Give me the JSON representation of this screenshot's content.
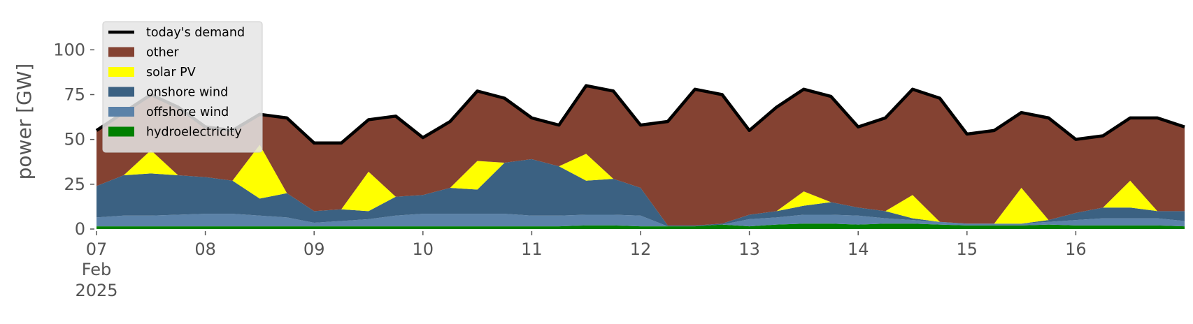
{
  "chart_data": {
    "type": "stacked-area",
    "ylabel": "power [GW]",
    "x": [
      7,
      7.25,
      7.5,
      7.75,
      8,
      8.25,
      8.5,
      8.75,
      9,
      9.25,
      9.5,
      9.75,
      10,
      10.25,
      10.5,
      10.75,
      11,
      11.25,
      11.5,
      11.75,
      12,
      12.25,
      12.5,
      12.75,
      13,
      13.25,
      13.5,
      13.75,
      14,
      14.25,
      14.5,
      14.75,
      15,
      15.25,
      15.5,
      15.75,
      16,
      16.25,
      16.5,
      16.75,
      17
    ],
    "xlim": [
      7,
      17
    ],
    "xticks": [
      {
        "value": 7,
        "label": "07"
      },
      {
        "value": 8,
        "label": "08"
      },
      {
        "value": 9,
        "label": "09"
      },
      10,
      11,
      12,
      13,
      14,
      15,
      16
    ],
    "x_month": "Feb",
    "x_year": "2025",
    "ylim": [
      0,
      120
    ],
    "yticks": [
      0,
      25,
      50,
      75,
      100
    ],
    "series": [
      {
        "name": "hydroelectricity",
        "color": "#008000",
        "values": [
          1.5,
          1.5,
          1.5,
          1.5,
          1.5,
          1.5,
          1.5,
          1.5,
          1.5,
          1.5,
          1.5,
          1.5,
          1.5,
          1.5,
          1.5,
          1.5,
          1.5,
          1.5,
          2,
          2,
          1.5,
          1.5,
          1.5,
          2.5,
          1.5,
          2.5,
          3,
          3,
          2.5,
          3,
          3,
          2.5,
          2,
          2,
          2,
          2.5,
          2,
          2,
          2,
          2,
          1.5
        ]
      },
      {
        "name": "offshore wind",
        "color": "#5b82a8",
        "values": [
          5,
          6,
          6,
          6.5,
          7,
          7,
          6,
          5,
          2,
          3,
          4,
          6,
          7,
          7,
          7,
          7,
          6,
          6,
          6,
          6,
          6,
          0,
          0,
          0,
          4,
          4,
          5,
          5,
          5,
          3,
          2,
          1.5,
          1,
          1,
          1,
          1.5,
          3,
          4,
          4,
          4,
          3
        ]
      },
      {
        "name": "onshore wind",
        "color": "#3b6182",
        "values": [
          17.5,
          22.5,
          23.5,
          22,
          20.5,
          18.5,
          9.5,
          13.5,
          6.5,
          6.5,
          4.5,
          10.5,
          10.5,
          14.5,
          13.5,
          28.5,
          31.5,
          27.5,
          19,
          20,
          15.5,
          0.5,
          0.5,
          0.5,
          2.5,
          3.5,
          5,
          7,
          4.5,
          4,
          1,
          0,
          0,
          0,
          0,
          1,
          4,
          6,
          6,
          4,
          5.5
        ]
      },
      {
        "name": "solar PV",
        "color": "#ffff00",
        "values": [
          0,
          0,
          13,
          0,
          0,
          0,
          30,
          0,
          0,
          0,
          22,
          0,
          0,
          0,
          16,
          0,
          0,
          0,
          15,
          0,
          0,
          0,
          0,
          0,
          0,
          0,
          8,
          0,
          0,
          0,
          13,
          0,
          0,
          0,
          20,
          0,
          0,
          0,
          15,
          0,
          0
        ]
      },
      {
        "name": "other",
        "color": "#844232",
        "values": [
          31,
          35,
          31,
          38,
          28,
          28,
          17,
          42,
          38,
          37,
          29,
          45,
          32,
          37,
          39,
          36,
          23,
          23,
          38,
          49,
          35,
          58,
          76,
          72,
          47,
          58,
          57,
          59,
          45,
          52,
          59,
          69,
          50,
          52,
          42,
          57,
          41,
          40,
          35,
          52,
          47
        ]
      }
    ],
    "line": {
      "name": "today's demand",
      "color": "#000000",
      "values": [
        55,
        65,
        75,
        68,
        57,
        55,
        64,
        62,
        48,
        48,
        61,
        63,
        51,
        60,
        77,
        73,
        62,
        58,
        80,
        77,
        58,
        60,
        78,
        75,
        55,
        68,
        78,
        74,
        57,
        62,
        78,
        73,
        53,
        55,
        65,
        62,
        50,
        52,
        62,
        62,
        57
      ]
    }
  }
}
